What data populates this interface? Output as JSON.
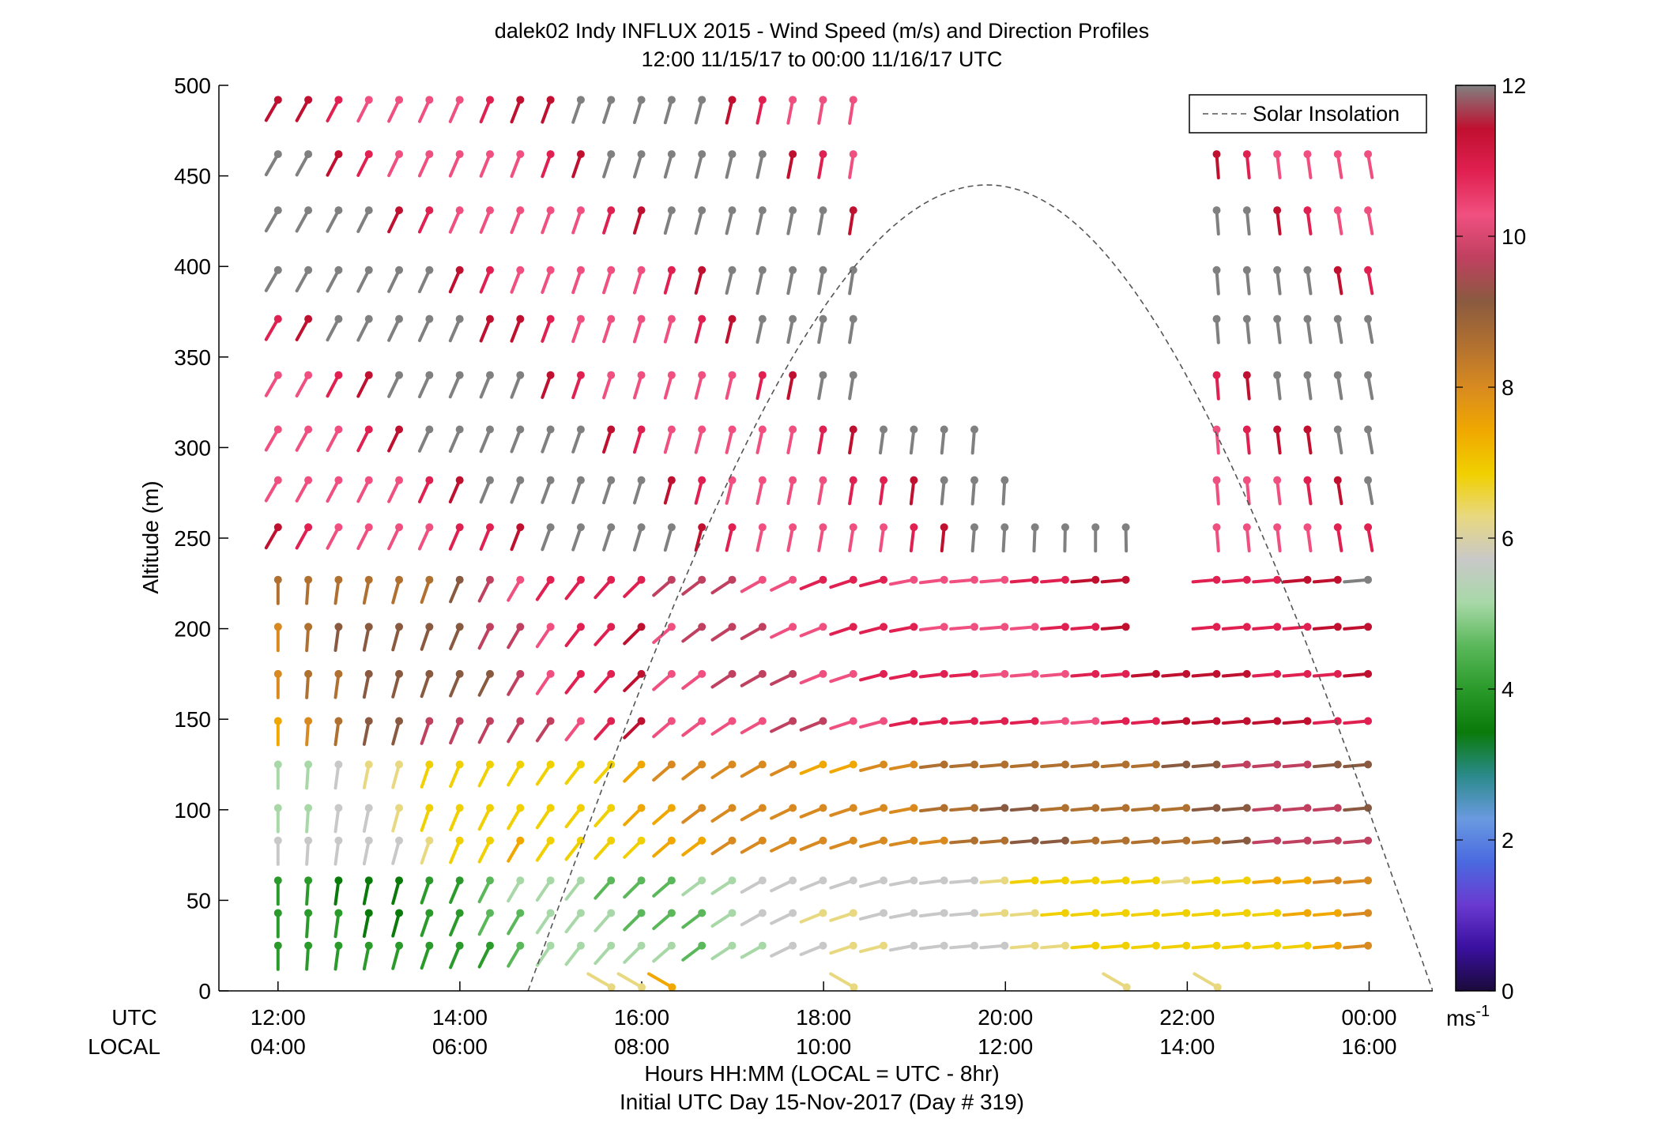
{
  "chart_data": {
    "type": "wind-barb profile (arrows colored by speed)",
    "title": "dalek02 Indy INFLUX 2015 - Wind Speed (m/s) and Direction Profiles",
    "subtitle": "12:00 11/15/17 to 00:00 11/16/17  UTC",
    "ylabel": "Altitude (m)",
    "xlabel": "Hours HH:MM  (LOCAL = UTC - 8hr)",
    "xlabel2": "Initial UTC Day 15-Nov-2017 (Day # 319)",
    "x_row_label_utc": "UTC",
    "x_row_label_local": "LOCAL",
    "ylim": [
      0,
      500
    ],
    "xlim_hours_utc": [
      11.35,
      24.7
    ],
    "y_ticks": [
      {
        "v": 0,
        "label": "0"
      },
      {
        "v": 50,
        "label": "50"
      },
      {
        "v": 100,
        "label": "100"
      },
      {
        "v": 150,
        "label": "150"
      },
      {
        "v": 200,
        "label": "200"
      },
      {
        "v": 250,
        "label": "250"
      },
      {
        "v": 300,
        "label": "300"
      },
      {
        "v": 350,
        "label": "350"
      },
      {
        "v": 400,
        "label": "400"
      },
      {
        "v": 450,
        "label": "450"
      },
      {
        "v": 500,
        "label": "500"
      }
    ],
    "x_ticks": [
      {
        "h": 12,
        "utc": "12:00",
        "local": "04:00"
      },
      {
        "h": 14,
        "utc": "14:00",
        "local": "06:00"
      },
      {
        "h": 16,
        "utc": "16:00",
        "local": "08:00"
      },
      {
        "h": 18,
        "utc": "18:00",
        "local": "10:00"
      },
      {
        "h": 20,
        "utc": "20:00",
        "local": "12:00"
      },
      {
        "h": 22,
        "utc": "22:00",
        "local": "14:00"
      },
      {
        "h": 24,
        "utc": "00:00",
        "local": "16:00"
      }
    ],
    "legend": {
      "label": "Solar Insolation",
      "placement": "top-right"
    },
    "solar_insolation_curve": {
      "start_hour": 14.75,
      "peak_hour": 19.8,
      "end_hour": 24.7,
      "peak_altitude": 445
    },
    "colorbar": {
      "min": 0,
      "max": 12,
      "unit": "ms",
      "unit_exponent": "-1",
      "ticks": [
        {
          "v": 0,
          "label": "0"
        },
        {
          "v": 2,
          "label": "2"
        },
        {
          "v": 4,
          "label": "4"
        },
        {
          "v": 6,
          "label": "6"
        },
        {
          "v": 8,
          "label": "8"
        },
        {
          "v": 10,
          "label": "10"
        },
        {
          "v": 12,
          "label": "12"
        }
      ],
      "gradient": [
        "#1a0a3a",
        "#3a10a0",
        "#6a3ad0",
        "#4a6ae0",
        "#6a9ae0",
        "#2a8a8a",
        "#0a7a0a",
        "#2a9a2a",
        "#5ab85a",
        "#a8d8a8",
        "#c8c8c8",
        "#e8d880",
        "#f0d000",
        "#f0a800",
        "#d88a20",
        "#b07030",
        "#8a5a40",
        "#c04060",
        "#f05080",
        "#e02050",
        "#c01030",
        "#808080"
      ]
    },
    "barb_rows_m": [
      25,
      43,
      61,
      83,
      101,
      125,
      149,
      175,
      201,
      227,
      256,
      282,
      310,
      340,
      371,
      398,
      431,
      462,
      492
    ],
    "barb_time_step_hours": 0.333,
    "barb_encoding": "each barb is a dot at (time, altitude) with a tail pointing toward where wind comes from; color = speed",
    "profiles_by_layer": [
      {
        "alt_range_m": [
          0,
          20
        ],
        "times": [
          "15:40",
          "16:00",
          "16:20",
          "18:20",
          "21:20",
          "22:20"
        ],
        "speed_ms": [
          6.5,
          6.5,
          7.2,
          6.5,
          6.5,
          6.5
        ],
        "direction": "northwest"
      },
      {
        "alt_range_m": [
          20,
          65
        ],
        "from_12_to_16_speed_ms": [
          3.5,
          5.0
        ],
        "from_16_to_24_speed_ms": [
          5.0,
          7.5
        ],
        "direction_change": "north to west-southwest"
      },
      {
        "alt_range_m": [
          65,
          130
        ],
        "from_12_to_16_speed_ms": [
          5.5,
          7.5
        ],
        "from_16_to_24_speed_ms": [
          7.5,
          9.5
        ],
        "direction_change": "north to southwest"
      },
      {
        "alt_range_m": [
          130,
          230
        ],
        "from_12_to_16_speed_ms": [
          8.0,
          11.0
        ],
        "from_16_to_24_speed_ms": [
          10.0,
          11.5
        ],
        "direction_change": "north to west-southwest"
      },
      {
        "alt_range_m": [
          230,
          500
        ],
        "speed_ms_range": [
          10.0,
          12.5
        ],
        "direction": "southwest to west",
        "note": "gray indicates >12 m/s"
      }
    ]
  }
}
